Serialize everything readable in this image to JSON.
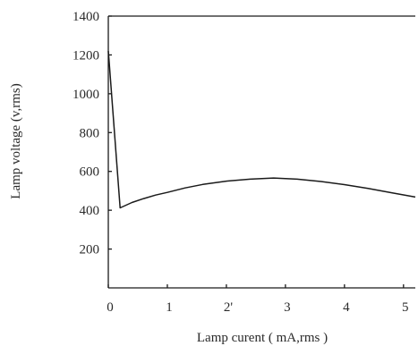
{
  "chart_data": {
    "type": "line",
    "title": "",
    "xlabel": "Lamp curent ( mA,rms )",
    "ylabel": "Lamp voltage (v,rms)",
    "xlim": [
      0,
      5.2
    ],
    "ylim": [
      0,
      1400
    ],
    "x_ticks": [
      0,
      1,
      2,
      3,
      4,
      5
    ],
    "x_tick_labels": [
      "0",
      "1",
      "2'",
      "3",
      "4",
      "5"
    ],
    "y_ticks": [
      200,
      400,
      600,
      800,
      1000,
      1200,
      1400
    ],
    "y_tick_labels": [
      "200",
      "400",
      "600",
      "800",
      "1000",
      "1200",
      "1400"
    ],
    "grid": false,
    "legend": "none",
    "series": [
      {
        "x": [
          0.0,
          0.01,
          0.2,
          0.4,
          0.6,
          0.8,
          1.0,
          1.3,
          1.6,
          2.0,
          2.4,
          2.8,
          3.2,
          3.6,
          4.0,
          4.4,
          4.8,
          5.2
        ],
        "y": [
          1220,
          1180,
          412,
          440,
          460,
          478,
          492,
          515,
          533,
          550,
          560,
          566,
          560,
          548,
          532,
          512,
          490,
          468
        ]
      }
    ]
  }
}
